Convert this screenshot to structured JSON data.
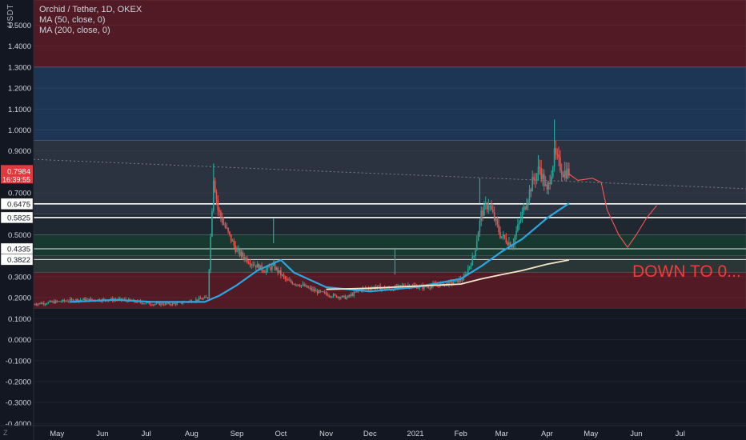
{
  "header": {
    "symbol_badge": "USDT",
    "title": "Orchid / Tether, 1D, OKEX",
    "indicators": [
      "MA (50, close, 0)",
      "MA (200, close, 0)"
    ]
  },
  "price_tag": {
    "price": "0.7984",
    "countdown": "16:39:55",
    "color": "#e03a3e"
  },
  "level_tags": [
    "0.6475",
    "0.5825",
    "0.4335",
    "0.3822"
  ],
  "annotation": {
    "text": "DOWN TO 0...",
    "color": "#f03b3b"
  },
  "footer_badge": "Z",
  "colors": {
    "background": "#131722",
    "up": "#26a69a",
    "down": "#ef5350",
    "ma50": "#2aa6e0",
    "ma200": "#f5e6c8",
    "projection": "#ff5252"
  },
  "chart_data": {
    "type": "candlestick",
    "title": "Orchid / Tether, 1D, OKEX",
    "ylim": [
      -0.41,
      1.62
    ],
    "y_ticks": [
      "1.5000",
      "1.4000",
      "1.3000",
      "1.2000",
      "1.1000",
      "1.0000",
      "0.9000",
      "0.7000",
      "0.5000",
      "0.3000",
      "0.2000",
      "0.1000",
      "0.0000",
      "-0.1000",
      "-0.2000",
      "-0.3000",
      "-0.4000"
    ],
    "x_ticks": [
      "May",
      "Jun",
      "Jul",
      "Aug",
      "Sep",
      "Oct",
      "Nov",
      "Dec",
      "2021",
      "Feb",
      "Mar",
      "Apr",
      "May",
      "Jun",
      "Jul"
    ],
    "zones": [
      {
        "from": 1.3,
        "to": 1.62,
        "color": "red"
      },
      {
        "from": 0.95,
        "to": 1.3,
        "color": "blue"
      },
      {
        "from": 0.6,
        "to": 0.95,
        "color": "grey"
      },
      {
        "from": 0.5,
        "to": 0.6,
        "color": "dark"
      },
      {
        "from": 0.4,
        "to": 0.5,
        "color": "green"
      },
      {
        "from": 0.32,
        "to": 0.4,
        "color": "grey-green"
      },
      {
        "from": 0.15,
        "to": 0.32,
        "color": "red"
      }
    ],
    "horizontal_lines": [
      0.6475,
      0.5825,
      0.4335,
      0.3822
    ],
    "price_path": [
      [
        "2020-04-15",
        0.17
      ],
      [
        "2020-05-15",
        0.19
      ],
      [
        "2020-06-15",
        0.19
      ],
      [
        "2020-07-05",
        0.17
      ],
      [
        "2020-07-20",
        0.17
      ],
      [
        "2020-08-05",
        0.19
      ],
      [
        "2020-08-12",
        0.2
      ],
      [
        "2020-08-16",
        0.78
      ],
      [
        "2020-08-19",
        0.62
      ],
      [
        "2020-08-23",
        0.55
      ],
      [
        "2020-09-01",
        0.42
      ],
      [
        "2020-09-10",
        0.37
      ],
      [
        "2020-09-20",
        0.33
      ],
      [
        "2020-09-26",
        0.35
      ],
      [
        "2020-10-05",
        0.28
      ],
      [
        "2020-10-15",
        0.26
      ],
      [
        "2020-10-25",
        0.23
      ],
      [
        "2020-11-05",
        0.21
      ],
      [
        "2020-11-15",
        0.2
      ],
      [
        "2020-11-25",
        0.24
      ],
      [
        "2020-12-05",
        0.25
      ],
      [
        "2020-12-15",
        0.24
      ],
      [
        "2020-12-25",
        0.26
      ],
      [
        "2021-01-05",
        0.25
      ],
      [
        "2021-01-15",
        0.26
      ],
      [
        "2021-01-25",
        0.27
      ],
      [
        "2021-02-03",
        0.29
      ],
      [
        "2021-02-10",
        0.4
      ],
      [
        "2021-02-15",
        0.6
      ],
      [
        "2021-02-20",
        0.65
      ],
      [
        "2021-02-28",
        0.5
      ],
      [
        "2021-03-08",
        0.45
      ],
      [
        "2021-03-15",
        0.6
      ],
      [
        "2021-03-22",
        0.75
      ],
      [
        "2021-03-27",
        0.82
      ],
      [
        "2021-04-01",
        0.7
      ],
      [
        "2021-04-06",
        0.88
      ],
      [
        "2021-04-12",
        0.8
      ],
      [
        "2021-04-16",
        0.7984
      ]
    ],
    "ma50": [
      [
        "2020-05-10",
        0.18
      ],
      [
        "2020-06-10",
        0.19
      ],
      [
        "2020-07-05",
        0.18
      ],
      [
        "2020-08-10",
        0.18
      ],
      [
        "2020-08-20",
        0.21
      ],
      [
        "2020-09-01",
        0.26
      ],
      [
        "2020-09-15",
        0.33
      ],
      [
        "2020-10-01",
        0.38
      ],
      [
        "2020-10-10",
        0.32
      ],
      [
        "2020-11-01",
        0.25
      ],
      [
        "2020-12-01",
        0.23
      ],
      [
        "2021-01-01",
        0.25
      ],
      [
        "2021-02-01",
        0.29
      ],
      [
        "2021-02-15",
        0.35
      ],
      [
        "2021-03-01",
        0.42
      ],
      [
        "2021-03-15",
        0.48
      ],
      [
        "2021-04-01",
        0.58
      ],
      [
        "2021-04-16",
        0.65
      ]
    ],
    "ma200": [
      [
        "2020-11-01",
        0.24
      ],
      [
        "2020-12-01",
        0.245
      ],
      [
        "2021-01-01",
        0.255
      ],
      [
        "2021-02-01",
        0.265
      ],
      [
        "2021-02-15",
        0.29
      ],
      [
        "2021-03-01",
        0.31
      ],
      [
        "2021-03-15",
        0.33
      ],
      [
        "2021-04-01",
        0.36
      ],
      [
        "2021-04-16",
        0.38
      ]
    ],
    "projection": [
      [
        "2021-04-16",
        0.79
      ],
      [
        "2021-04-22",
        0.76
      ],
      [
        "2021-05-02",
        0.77
      ],
      [
        "2021-05-08",
        0.75
      ],
      [
        "2021-05-12",
        0.62
      ],
      [
        "2021-05-20",
        0.5
      ],
      [
        "2021-05-26",
        0.44
      ],
      [
        "2021-06-01",
        0.5
      ],
      [
        "2021-06-08",
        0.58
      ],
      [
        "2021-06-15",
        0.64
      ]
    ],
    "projection_dip": [
      [
        "2021-05-16",
        0.52
      ],
      [
        "2021-05-26",
        0.46
      ]
    ]
  }
}
